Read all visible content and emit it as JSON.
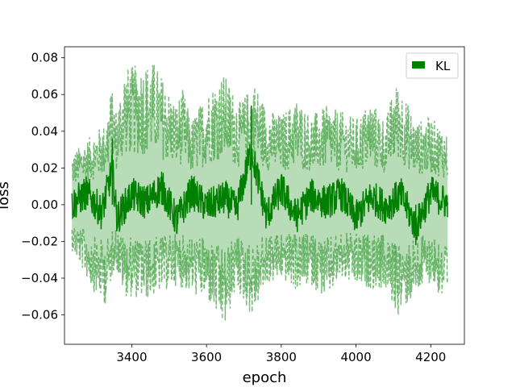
{
  "chart_data": {
    "type": "line",
    "title": "",
    "xlabel": "epoch",
    "ylabel": "loss",
    "xlim": [
      3220,
      4290
    ],
    "ylim": [
      -0.076,
      0.086
    ],
    "x_ticks": [
      3400,
      3600,
      3800,
      4000,
      4200
    ],
    "x_tick_labels": [
      "3400",
      "3600",
      "3800",
      "4000",
      "4200"
    ],
    "y_ticks": [
      -0.06,
      -0.04,
      -0.02,
      0.0,
      0.02,
      0.04,
      0.06,
      0.08
    ],
    "y_tick_labels": [
      "−0.06",
      "−0.04",
      "−0.02",
      "0.00",
      "0.02",
      "0.04",
      "0.06",
      "0.08"
    ],
    "grid": false,
    "legend_position": "top-right",
    "x_range": [
      3240,
      4245
    ],
    "series": [
      {
        "name": "KL",
        "color": "#008000",
        "style": "solid",
        "x": [
          3240,
          3280,
          3320,
          3348,
          3360,
          3400,
          3440,
          3480,
          3520,
          3560,
          3600,
          3650,
          3680,
          3720,
          3760,
          3800,
          3840,
          3880,
          3920,
          3960,
          4000,
          4040,
          4080,
          4120,
          4160,
          4200,
          4245
        ],
        "values": [
          0.0,
          0.012,
          -0.008,
          0.036,
          -0.014,
          0.01,
          0.002,
          0.018,
          -0.016,
          0.013,
          -0.002,
          0.007,
          -0.005,
          0.054,
          -0.011,
          0.016,
          -0.012,
          0.009,
          0.002,
          0.011,
          -0.013,
          0.008,
          -0.002,
          0.01,
          -0.022,
          0.012,
          0.001
        ]
      }
    ],
    "band": {
      "color": "#008000",
      "opacity": 0.5,
      "style": "dashed",
      "upper": {
        "x": [
          3240,
          3330,
          3345,
          3360,
          3380,
          3460,
          3520,
          3535,
          3560,
          3600,
          3645,
          3690,
          3728,
          3760,
          3800,
          3840,
          3880,
          3920,
          3960,
          4000,
          4040,
          4080,
          4100,
          4115,
          4160,
          4200,
          4245
        ],
        "values": [
          0.028,
          0.045,
          0.064,
          0.052,
          0.075,
          0.078,
          0.055,
          0.064,
          0.046,
          0.062,
          0.072,
          0.056,
          0.068,
          0.053,
          0.049,
          0.058,
          0.049,
          0.054,
          0.051,
          0.047,
          0.057,
          0.046,
          0.064,
          0.067,
          0.045,
          0.048,
          0.039
        ]
      },
      "lower": {
        "x": [
          3240,
          3300,
          3330,
          3355,
          3380,
          3440,
          3520,
          3560,
          3600,
          3648,
          3680,
          3722,
          3760,
          3800,
          3840,
          3880,
          3920,
          3960,
          4000,
          4040,
          4080,
          4110,
          4160,
          4200,
          4245
        ],
        "values": [
          -0.025,
          -0.048,
          -0.055,
          -0.033,
          -0.05,
          -0.052,
          -0.044,
          -0.049,
          -0.052,
          -0.069,
          -0.046,
          -0.062,
          -0.044,
          -0.041,
          -0.047,
          -0.044,
          -0.052,
          -0.041,
          -0.045,
          -0.046,
          -0.047,
          -0.061,
          -0.05,
          -0.042,
          -0.058
        ]
      }
    }
  }
}
